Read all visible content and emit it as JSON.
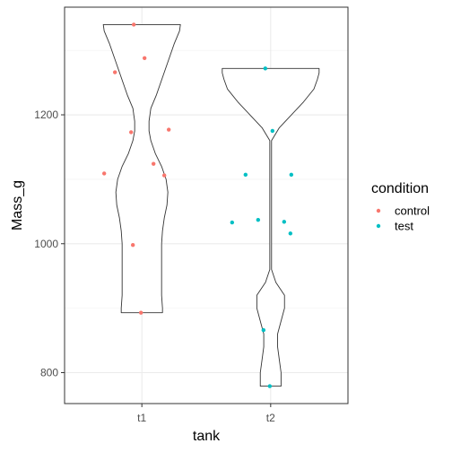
{
  "chart_data": {
    "type": "violin",
    "x": {
      "label": "tank",
      "categories": [
        "t1",
        "t2"
      ]
    },
    "y": {
      "label": "Mass_g",
      "range": [
        752,
        1367
      ],
      "ticks": [
        800,
        1000,
        1200
      ]
    },
    "grid": true,
    "legend": {
      "title": "condition",
      "placement": "right",
      "entries": [
        {
          "name": "control",
          "color": "#F8766D"
        },
        {
          "name": "test",
          "color": "#00BFC4"
        }
      ]
    },
    "violins": [
      {
        "category": "t1",
        "min": 893,
        "max": 1340
      },
      {
        "category": "t2",
        "min": 779,
        "max": 1272
      }
    ],
    "points": [
      {
        "category": "t1",
        "condition": "control",
        "y": 1340
      },
      {
        "category": "t1",
        "condition": "control",
        "y": 1288
      },
      {
        "category": "t1",
        "condition": "control",
        "y": 1266
      },
      {
        "category": "t1",
        "condition": "control",
        "y": 1177
      },
      {
        "category": "t1",
        "condition": "control",
        "y": 1173
      },
      {
        "category": "t1",
        "condition": "control",
        "y": 1124
      },
      {
        "category": "t1",
        "condition": "control",
        "y": 1109
      },
      {
        "category": "t1",
        "condition": "control",
        "y": 1106
      },
      {
        "category": "t1",
        "condition": "control",
        "y": 998
      },
      {
        "category": "t1",
        "condition": "control",
        "y": 893
      },
      {
        "category": "t2",
        "condition": "test",
        "y": 1272
      },
      {
        "category": "t2",
        "condition": "test",
        "y": 1175
      },
      {
        "category": "t2",
        "condition": "test",
        "y": 1107
      },
      {
        "category": "t2",
        "condition": "test",
        "y": 1107
      },
      {
        "category": "t2",
        "condition": "test",
        "y": 1037
      },
      {
        "category": "t2",
        "condition": "test",
        "y": 1034
      },
      {
        "category": "t2",
        "condition": "test",
        "y": 1033
      },
      {
        "category": "t2",
        "condition": "test",
        "y": 1016
      },
      {
        "category": "t2",
        "condition": "test",
        "y": 866
      },
      {
        "category": "t2",
        "condition": "test",
        "y": 779
      }
    ]
  }
}
